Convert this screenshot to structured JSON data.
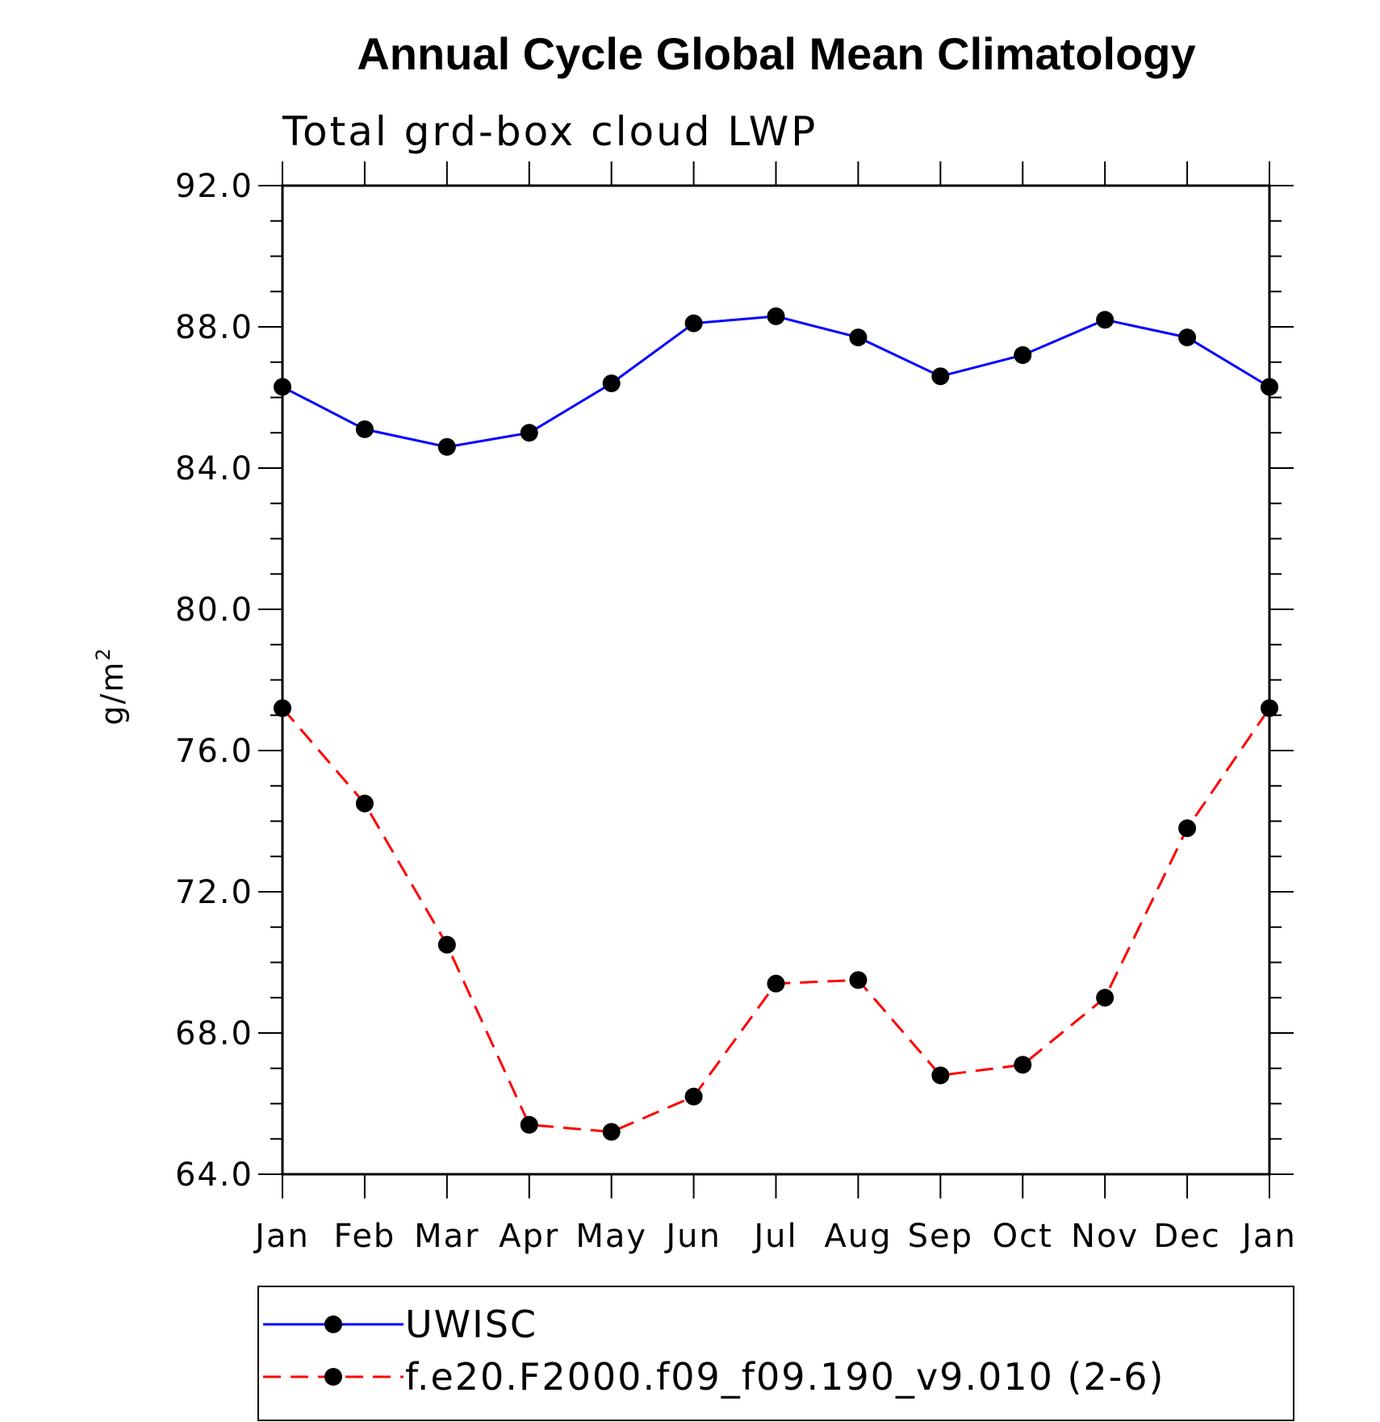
{
  "chart_data": {
    "type": "line",
    "title": "Annual Cycle Global Mean Climatology",
    "subtitle": "Total grd-box cloud LWP",
    "xlabel": "",
    "ylabel": "g/m",
    "ylabel_superscript": "2",
    "categories": [
      "Jan",
      "Feb",
      "Mar",
      "Apr",
      "May",
      "Jun",
      "Jul",
      "Aug",
      "Sep",
      "Oct",
      "Nov",
      "Dec",
      "Jan"
    ],
    "ylim": [
      64,
      92
    ],
    "yticks": [
      "64.0",
      "68.0",
      "72.0",
      "76.0",
      "80.0",
      "84.0",
      "88.0",
      "92.0"
    ],
    "grid": false,
    "legend_position": "bottom",
    "series": [
      {
        "name": "UWISC",
        "color": "#0000ff",
        "dash": "solid",
        "marker": "filled-circle",
        "values": [
          86.3,
          85.1,
          84.6,
          85.0,
          86.4,
          88.1,
          88.3,
          87.7,
          86.6,
          87.2,
          88.2,
          87.7,
          86.3
        ]
      },
      {
        "name": "f.e20.F2000.f09_f09.190_v9.010 (2-6)",
        "color": "#ff0000",
        "dash": "dashed",
        "marker": "filled-circle",
        "values": [
          77.2,
          74.5,
          70.5,
          65.4,
          65.2,
          66.2,
          69.4,
          69.5,
          66.8,
          67.1,
          69.0,
          73.8,
          77.2
        ]
      }
    ]
  }
}
